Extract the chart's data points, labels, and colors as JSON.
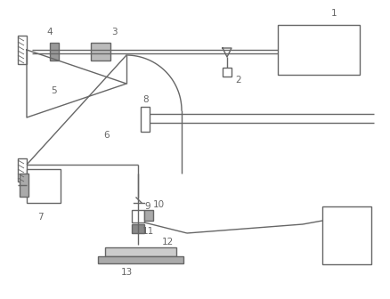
{
  "bg_color": "#ffffff",
  "line_color": "#666666",
  "line_width": 1.0,
  "figsize": [
    4.39,
    3.36
  ],
  "dpi": 100
}
